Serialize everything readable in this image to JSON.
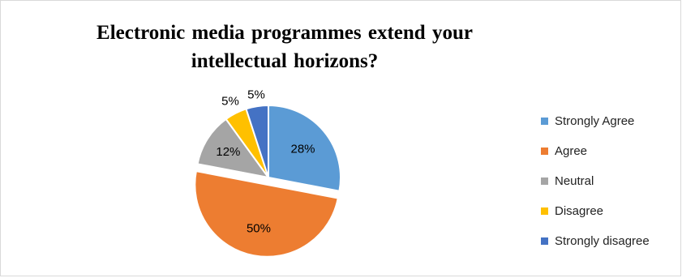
{
  "chart_data": {
    "type": "pie",
    "title": "Electronic media programmes  extend your\nintellectual horizons?",
    "slices": [
      {
        "label": "Strongly Agree",
        "value": 28,
        "display": "28%",
        "color": "#5b9bd5",
        "exploded": false
      },
      {
        "label": "Agree",
        "value": 50,
        "display": "50%",
        "color": "#ed7d31",
        "exploded": true
      },
      {
        "label": "Neutral",
        "value": 12,
        "display": "12%",
        "color": "#a5a5a5",
        "exploded": false
      },
      {
        "label": "Disagree",
        "value": 5,
        "display": "5%",
        "color": "#ffc000",
        "exploded": false
      },
      {
        "label": "Strongly disagree",
        "value": 5,
        "display": "5%",
        "color": "#4472c4",
        "exploded": false
      }
    ],
    "legend_position": "right",
    "data_labels": "percent"
  }
}
